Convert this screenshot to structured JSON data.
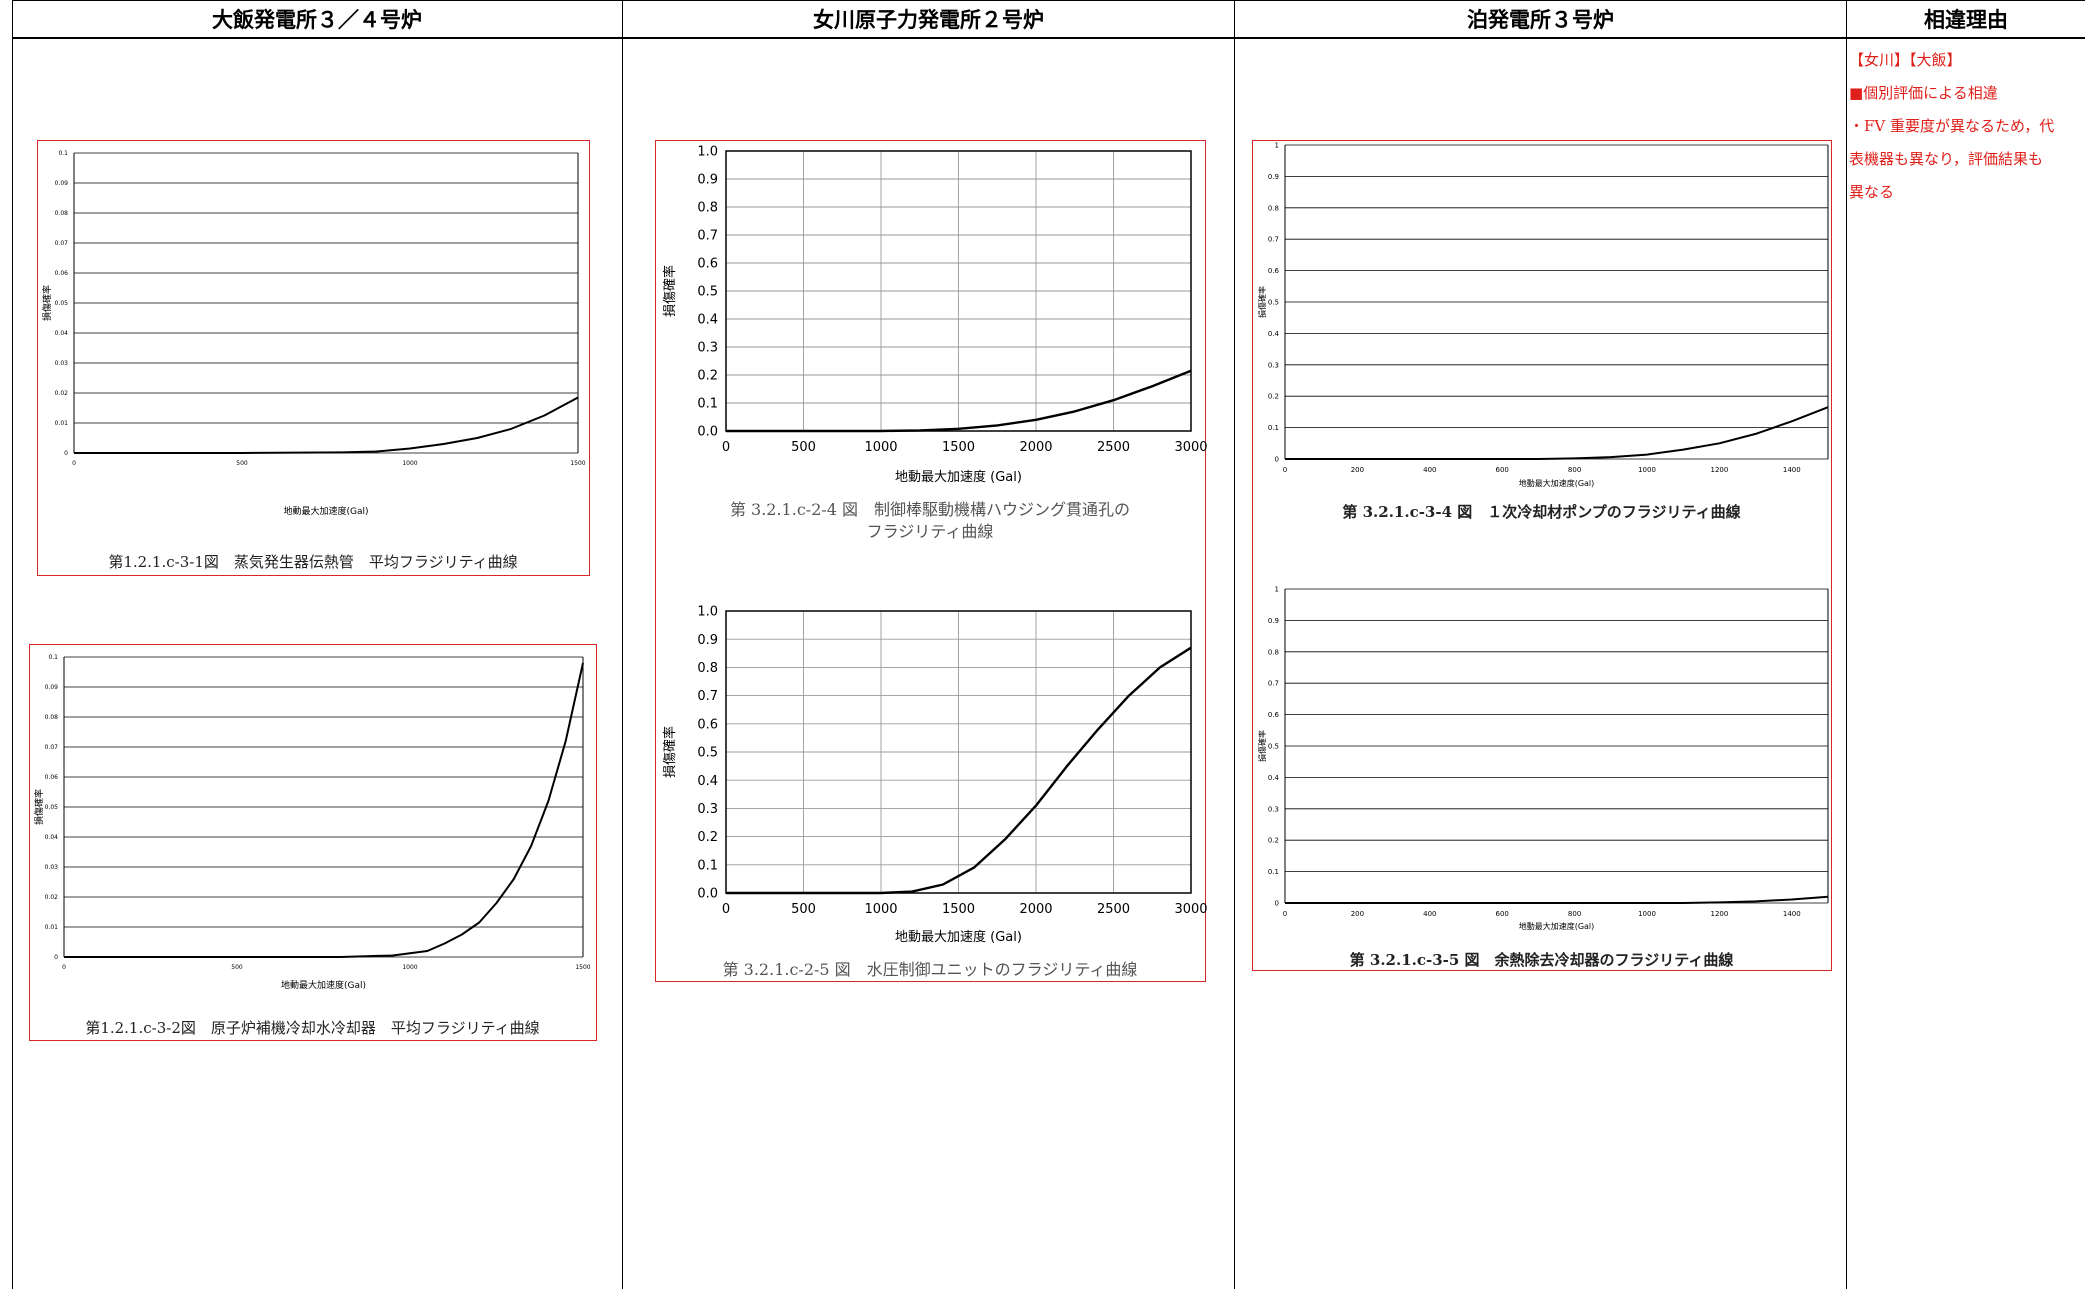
{
  "header": {
    "col1": "大飯発電所３／４号炉",
    "col2": "女川原子力発電所２号炉",
    "col3": "泊発電所３号炉",
    "col4": "相違理由"
  },
  "reason": {
    "line1": "【女川】【大飯】",
    "line2": "■個別評価による相違",
    "line3": "・FV 重要度が異なるため，代",
    "line4": "表機器も異なり，評価結果も",
    "line5": "異なる",
    "color": "#e0201b"
  },
  "colors": {
    "panel_border": "#d62828",
    "curve": "#000000",
    "grid": "#000000"
  },
  "captions": {
    "ohi1": "第1.2.1.c-3-1図　蒸気発生器伝熱管　平均フラジリティ曲線",
    "ohi2": "第1.2.1.c-3-2図　原子炉補機冷却水冷却器　平均フラジリティ曲線",
    "onagawa1_line1": "第 3.2.1.c-2-4 図　制御棒駆動機構ハウジング貫通孔の",
    "onagawa1_line2": "フラジリティ曲線",
    "onagawa2": "第 3.2.1.c-2-5 図　水圧制御ユニットのフラジリティ曲線",
    "tomari1": "第 3.2.1.c-3-4 図　１次冷却材ポンプのフラジリティ曲線",
    "tomari2": "第 3.2.1.c-3-5 図　余熱除去冷却器のフラジリティ曲線"
  },
  "chart_data": [
    {
      "id": "ohi1",
      "type": "line",
      "xlabel": "地動最大加速度(Gal)",
      "ylabel": "損傷確率",
      "xlim": [
        0,
        1500
      ],
      "ylim": [
        0,
        0.1
      ],
      "xticks": [
        0,
        500,
        1000,
        1500
      ],
      "xtick_labels": [
        "0",
        "500",
        "1000",
        "1500"
      ],
      "yticks": [
        0,
        0.01,
        0.02,
        0.03,
        0.04,
        0.05,
        0.06,
        0.07,
        0.08,
        0.09,
        0.1
      ],
      "ytick_labels": [
        "0",
        "0.01",
        "0.02",
        "0.03",
        "0.04",
        "0.05",
        "0.06",
        "0.07",
        "0.08",
        "0.09",
        "0.1"
      ],
      "grid": "horizontal",
      "x": [
        0,
        500,
        800,
        900,
        1000,
        1100,
        1200,
        1300,
        1400,
        1500
      ],
      "y": [
        0,
        0,
        0.0002,
        0.0005,
        0.0015,
        0.003,
        0.005,
        0.008,
        0.0125,
        0.0185
      ]
    },
    {
      "id": "ohi2",
      "type": "line",
      "xlabel": "地動最大加速度(Gal)",
      "ylabel": "損傷確率",
      "xlim": [
        0,
        1500
      ],
      "ylim": [
        0,
        0.1
      ],
      "xticks": [
        0,
        500,
        1000,
        1500
      ],
      "xtick_labels": [
        "0",
        "500",
        "1000",
        "1500"
      ],
      "yticks": [
        0,
        0.01,
        0.02,
        0.03,
        0.04,
        0.05,
        0.06,
        0.07,
        0.08,
        0.09,
        0.1
      ],
      "ytick_labels": [
        "0",
        "0.01",
        "0.02",
        "0.03",
        "0.04",
        "0.05",
        "0.06",
        "0.07",
        "0.08",
        "0.09",
        "0.1"
      ],
      "grid": "horizontal",
      "x": [
        0,
        800,
        950,
        1050,
        1100,
        1150,
        1200,
        1250,
        1300,
        1350,
        1400,
        1450,
        1500
      ],
      "y": [
        0,
        0,
        0.0005,
        0.002,
        0.0045,
        0.0075,
        0.0115,
        0.018,
        0.026,
        0.037,
        0.052,
        0.072,
        0.098
      ]
    },
    {
      "id": "onagawa1",
      "type": "line",
      "xlabel": "地動最大加速度 (Gal)",
      "ylabel": "損傷確率",
      "xlim": [
        0,
        3000
      ],
      "ylim": [
        0,
        1.0
      ],
      "xticks": [
        0,
        500,
        1000,
        1500,
        2000,
        2500,
        3000
      ],
      "xtick_labels": [
        "0",
        "500",
        "1000",
        "1500",
        "2000",
        "2500",
        "3000"
      ],
      "yticks": [
        0,
        0.1,
        0.2,
        0.3,
        0.4,
        0.5,
        0.6,
        0.7,
        0.8,
        0.9,
        1.0
      ],
      "ytick_labels": [
        "0.0",
        "0.1",
        "0.2",
        "0.3",
        "0.4",
        "0.5",
        "0.6",
        "0.7",
        "0.8",
        "0.9",
        "1.0"
      ],
      "grid": "both",
      "x": [
        0,
        1000,
        1250,
        1500,
        1750,
        2000,
        2250,
        2500,
        2750,
        3000
      ],
      "y": [
        0,
        0,
        0.002,
        0.008,
        0.02,
        0.04,
        0.07,
        0.11,
        0.16,
        0.215
      ]
    },
    {
      "id": "onagawa2",
      "type": "line",
      "xlabel": "地動最大加速度 (Gal)",
      "ylabel": "損傷確率",
      "xlim": [
        0,
        3000
      ],
      "ylim": [
        0,
        1.0
      ],
      "xticks": [
        0,
        500,
        1000,
        1500,
        2000,
        2500,
        3000
      ],
      "xtick_labels": [
        "0",
        "500",
        "1000",
        "1500",
        "2000",
        "2500",
        "3000"
      ],
      "yticks": [
        0,
        0.1,
        0.2,
        0.3,
        0.4,
        0.5,
        0.6,
        0.7,
        0.8,
        0.9,
        1.0
      ],
      "ytick_labels": [
        "0.0",
        "0.1",
        "0.2",
        "0.3",
        "0.4",
        "0.5",
        "0.6",
        "0.7",
        "0.8",
        "0.9",
        "1.0"
      ],
      "grid": "both",
      "x": [
        0,
        1000,
        1200,
        1400,
        1600,
        1800,
        2000,
        2200,
        2400,
        2600,
        2800,
        3000
      ],
      "y": [
        0,
        0,
        0.005,
        0.03,
        0.09,
        0.19,
        0.31,
        0.45,
        0.58,
        0.7,
        0.8,
        0.87
      ]
    },
    {
      "id": "tomari1",
      "type": "line",
      "xlabel": "地動最大加速度(Gal)",
      "ylabel": "損傷確率",
      "xlim": [
        0,
        1500
      ],
      "ylim": [
        0,
        1
      ],
      "xticks": [
        0,
        200,
        400,
        600,
        800,
        1000,
        1200,
        1400
      ],
      "xtick_labels": [
        "0",
        "200",
        "400",
        "600",
        "800",
        "1000",
        "1200",
        "1400"
      ],
      "yticks": [
        0,
        0.1,
        0.2,
        0.3,
        0.4,
        0.5,
        0.6,
        0.7,
        0.8,
        0.9,
        1
      ],
      "ytick_labels": [
        "0",
        "0.1",
        "0.2",
        "0.3",
        "0.4",
        "0.5",
        "0.6",
        "0.7",
        "0.8",
        "0.9",
        "1"
      ],
      "grid": "horizontal",
      "x": [
        0,
        700,
        800,
        900,
        1000,
        1100,
        1200,
        1300,
        1400,
        1500
      ],
      "y": [
        0,
        0,
        0.002,
        0.006,
        0.014,
        0.03,
        0.05,
        0.08,
        0.12,
        0.165
      ]
    },
    {
      "id": "tomari2",
      "type": "line",
      "xlabel": "地動最大加速度(Gal)",
      "ylabel": "損傷確率",
      "xlim": [
        0,
        1500
      ],
      "ylim": [
        0,
        1
      ],
      "xticks": [
        0,
        200,
        400,
        600,
        800,
        1000,
        1200,
        1400
      ],
      "xtick_labels": [
        "0",
        "200",
        "400",
        "600",
        "800",
        "1000",
        "1200",
        "1400"
      ],
      "yticks": [
        0,
        0.1,
        0.2,
        0.3,
        0.4,
        0.5,
        0.6,
        0.7,
        0.8,
        0.9,
        1
      ],
      "ytick_labels": [
        "0",
        "0.1",
        "0.2",
        "0.3",
        "0.4",
        "0.5",
        "0.6",
        "0.7",
        "0.8",
        "0.9",
        "1"
      ],
      "grid": "horizontal",
      "x": [
        0,
        1100,
        1200,
        1300,
        1400,
        1500
      ],
      "y": [
        0,
        0,
        0.002,
        0.005,
        0.011,
        0.02
      ]
    }
  ]
}
